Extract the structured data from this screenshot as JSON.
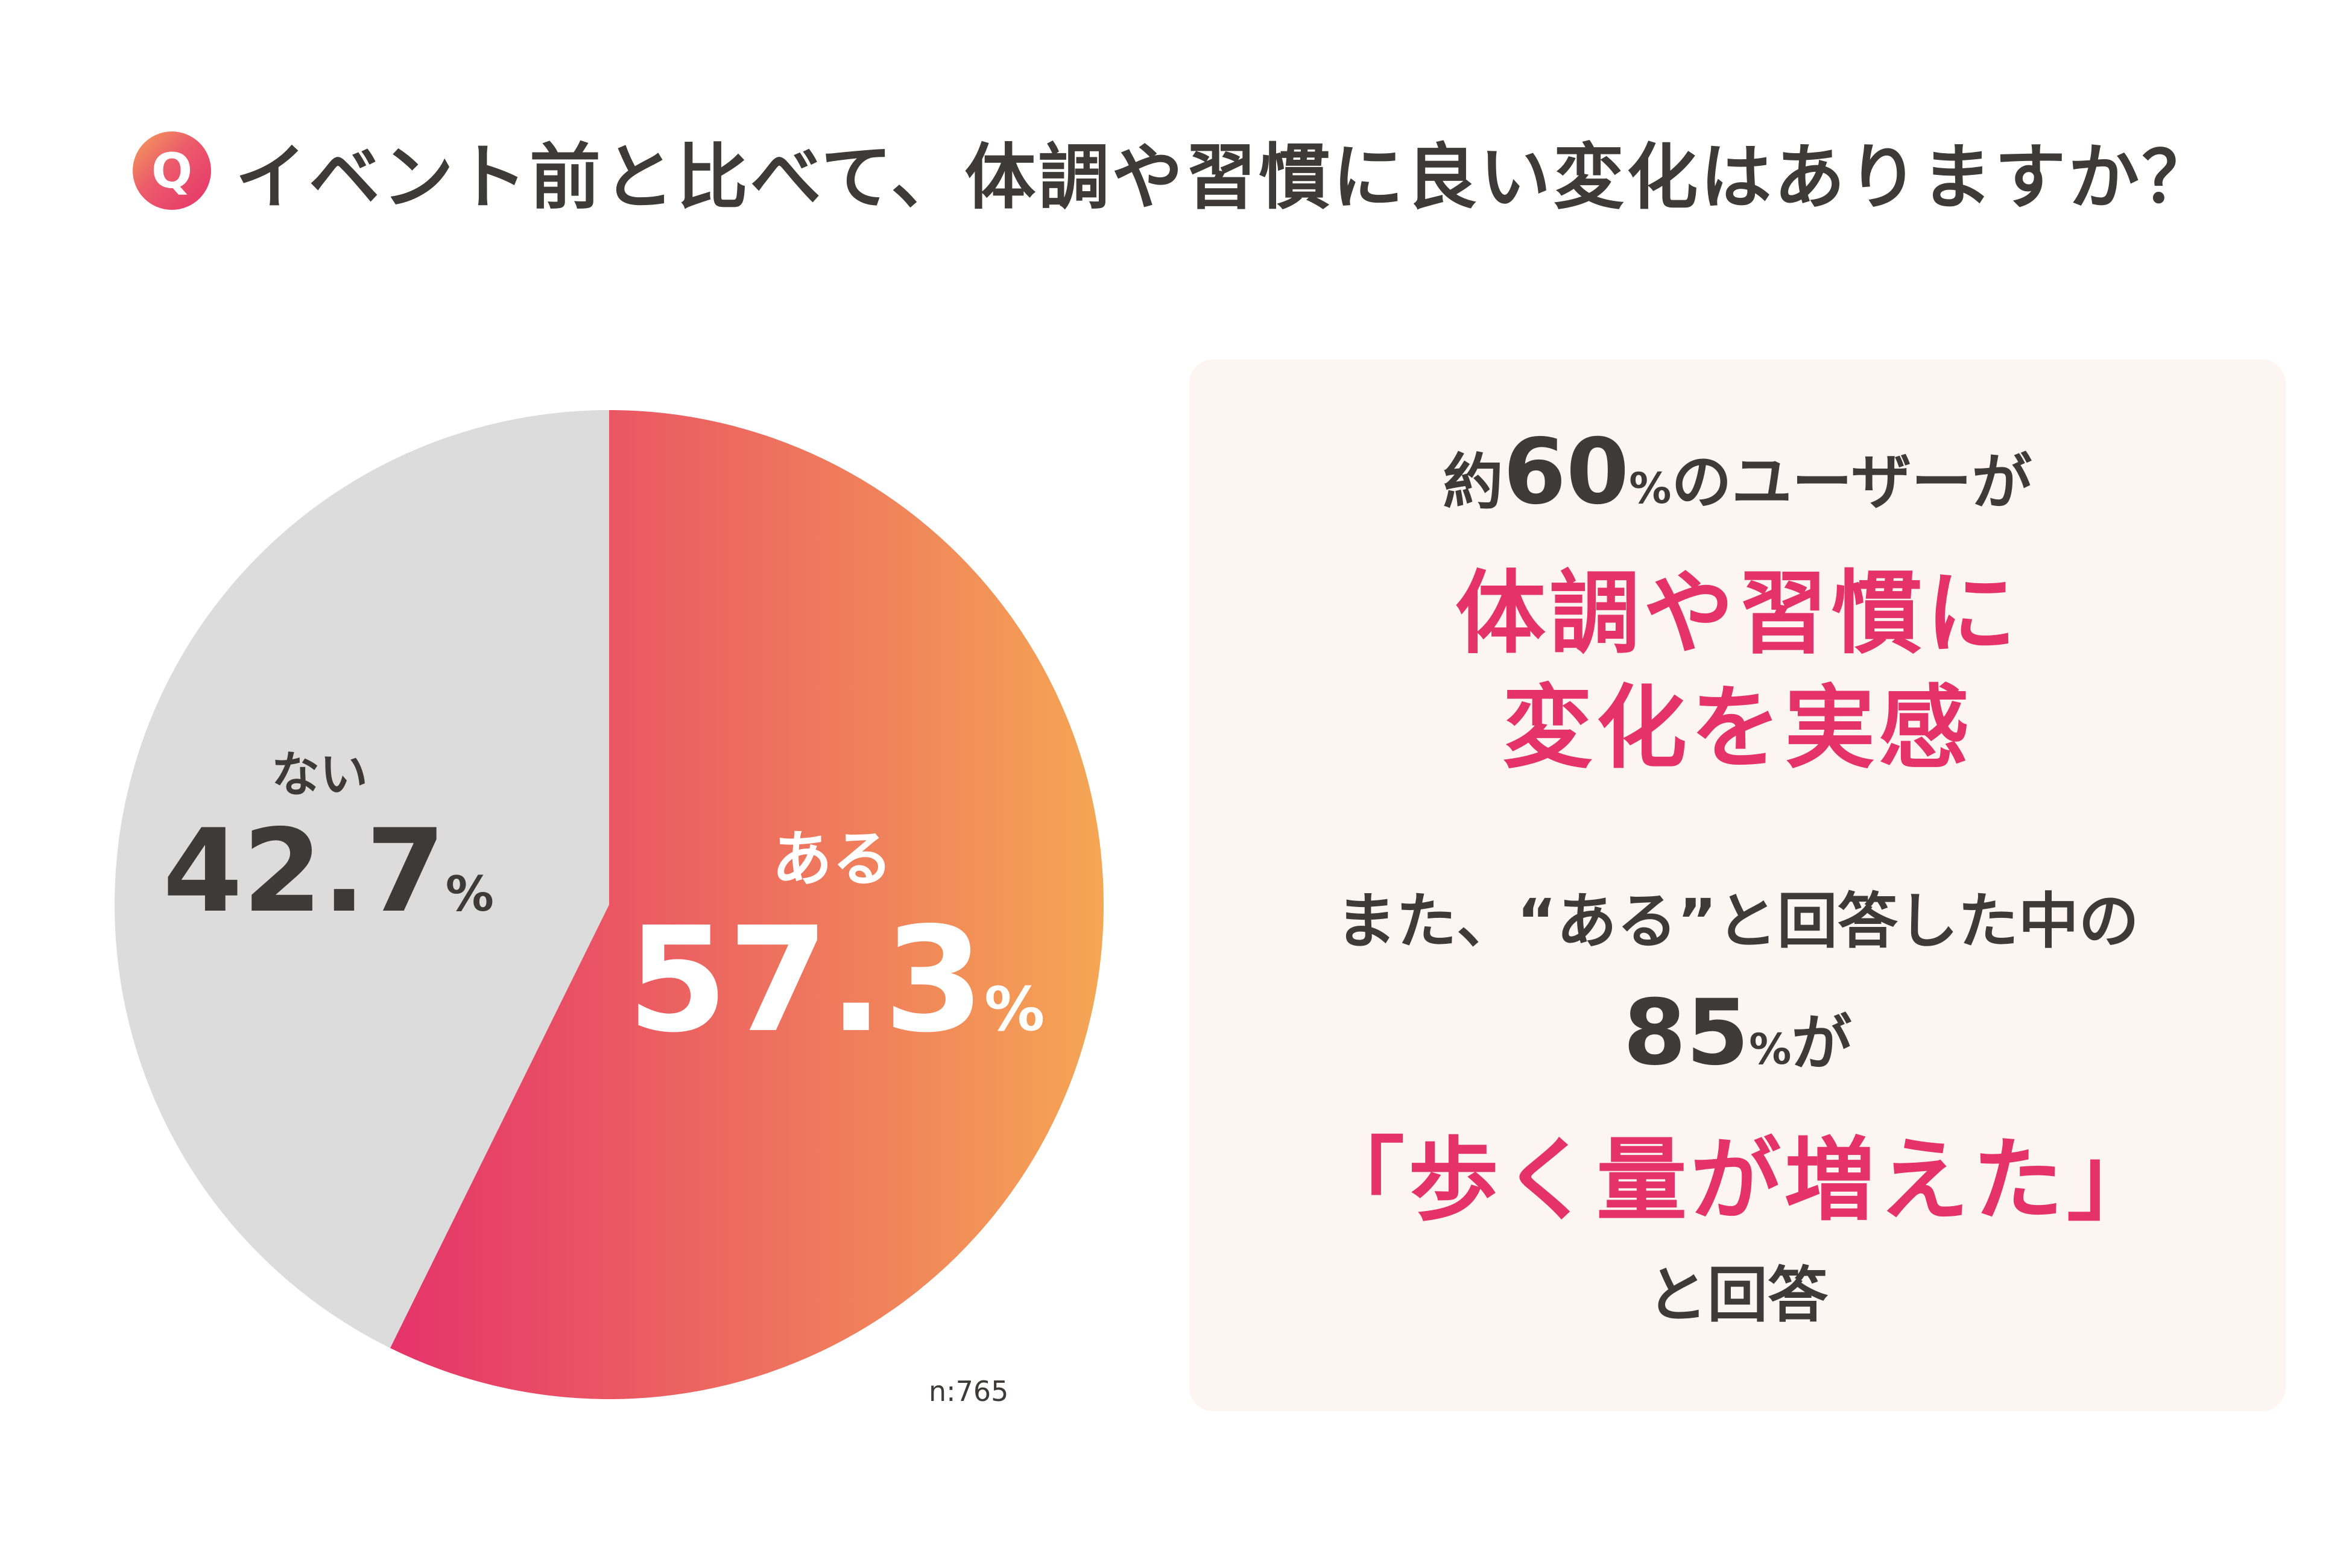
{
  "header": {
    "badge": "Q",
    "question": "イベント前と比べて、体調や習慣に良い変化はありますか？"
  },
  "chart_data": {
    "type": "pie",
    "slices": [
      {
        "label": "ある",
        "value": 57.3,
        "display": "57.3",
        "unit": "%"
      },
      {
        "label": "ない",
        "value": 42.7,
        "display": "42.7",
        "unit": "%"
      }
    ],
    "colors": {
      "ある_gradient": [
        "#e5336a",
        "#f5a654"
      ],
      "ない": "#dcdcdc"
    },
    "n_label": "n:765"
  },
  "summary": {
    "line1_prefix": "約",
    "line1_number": "60",
    "line1_unit": "%",
    "line1_suffix": "のユーザーが",
    "highlight1_line1": "体調や習慣に",
    "highlight1_line2": "変化を実感",
    "line2": "また、“ある”と回答した中の",
    "line3_number": "85",
    "line3_unit": "%",
    "line3_suffix": "が",
    "highlight2": "「歩く量が増えた」",
    "line4": "と回答"
  },
  "colors": {
    "accent": "#e5336a",
    "text": "#3e3a39",
    "panel_bg": "#fdf5f1"
  }
}
